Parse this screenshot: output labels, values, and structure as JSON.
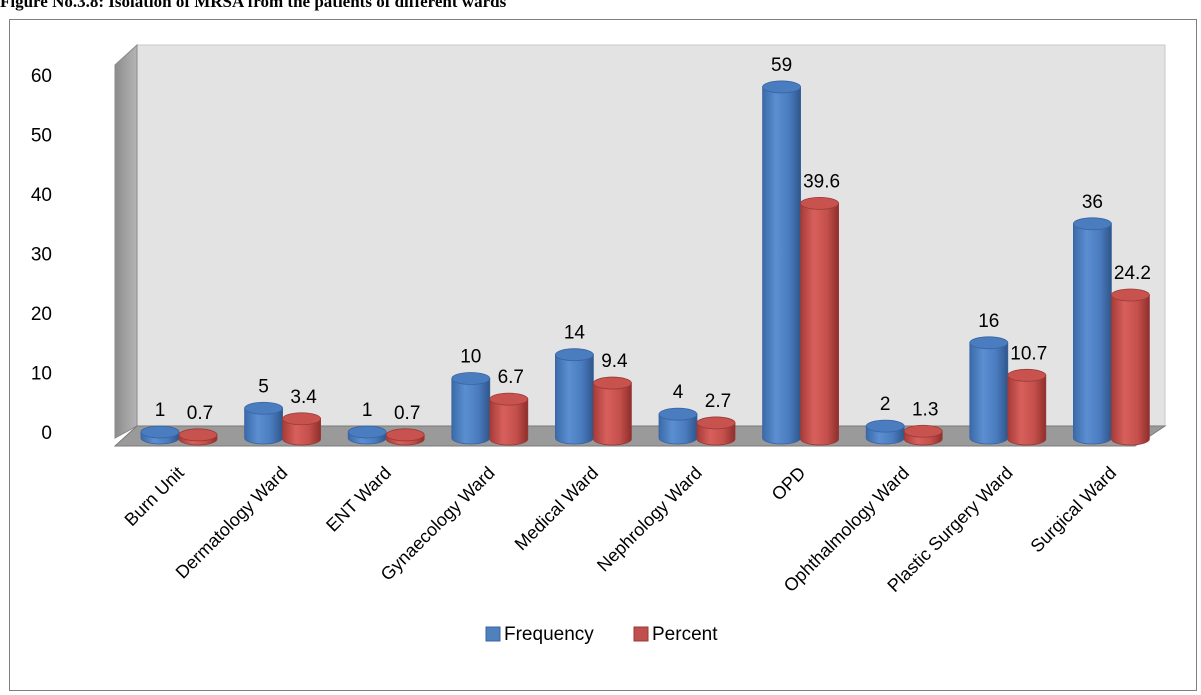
{
  "caption": "Figure No.3.8: Isolation of MRSA from the patients of different wards",
  "chart_data": {
    "type": "bar",
    "style": "3d-cylinder",
    "title": "",
    "xlabel": "",
    "ylabel": "",
    "ylim": [
      0,
      60
    ],
    "yticks": [
      0,
      10,
      20,
      30,
      40,
      50,
      60
    ],
    "grid": false,
    "legend_position": "bottom",
    "categories": [
      "Burn Unit",
      "Dermatology Ward",
      "ENT Ward",
      "Gynaecology Ward",
      "Medical Ward",
      "Nephrology Ward",
      "OPD",
      "Ophthalmology Ward",
      "Plastic Surgery Ward",
      "Surgical Ward"
    ],
    "series": [
      {
        "name": "Frequency",
        "color": "#4f81bd",
        "values": [
          1,
          5,
          1,
          10,
          14,
          4,
          59,
          2,
          16,
          36
        ],
        "labels": [
          "1",
          "5",
          "1",
          "10",
          "14",
          "4",
          "59",
          "2",
          "16",
          "36"
        ]
      },
      {
        "name": "Percent",
        "color": "#c0504d",
        "values": [
          0.7,
          3.4,
          0.7,
          6.7,
          9.4,
          2.7,
          39.6,
          1.3,
          10.7,
          24.2
        ],
        "labels": [
          "0.7",
          "3.4",
          "0.7",
          "6.7",
          "9.4",
          "2.7",
          "39.6",
          "1.3",
          "10.7",
          "24.2"
        ]
      }
    ]
  }
}
